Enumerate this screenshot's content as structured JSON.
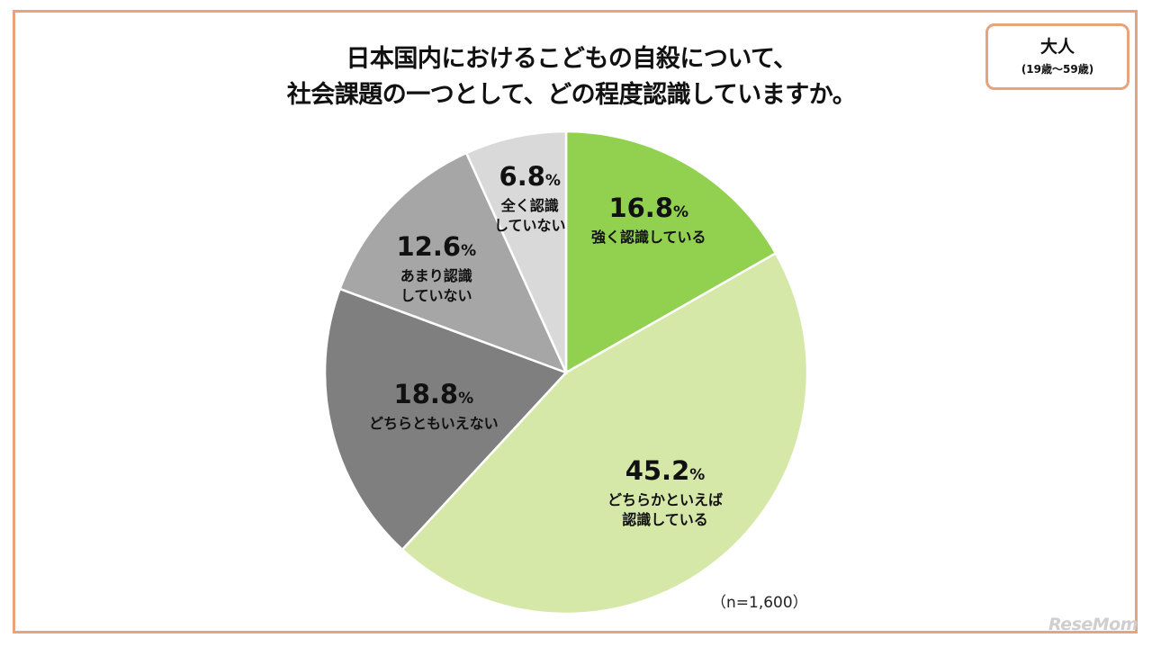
{
  "chart_data": {
    "type": "pie",
    "title_lines": [
      "日本国内におけるこどもの自殺について、",
      "社会課題の一つとして、どの程度認識していますか。"
    ],
    "slices": [
      {
        "pct": "16.8",
        "label": "強く認識している",
        "lines": [
          "強く認識している"
        ],
        "value": 16.8,
        "color": "#92d050"
      },
      {
        "pct": "45.2",
        "label": "どちらかといえば認識している",
        "lines": [
          "どちらかといえば",
          "認識している"
        ],
        "value": 45.2,
        "color": "#d6e8a8"
      },
      {
        "pct": "18.8",
        "label": "どちらともいえない",
        "lines": [
          "どちらともいえない"
        ],
        "value": 18.8,
        "color": "#7f7f7f"
      },
      {
        "pct": "12.6",
        "label": "あまり認識していない",
        "lines": [
          "あまり認識",
          "していない"
        ],
        "value": 12.6,
        "color": "#a6a6a6"
      },
      {
        "pct": "6.8",
        "label": "全く認識していない",
        "lines": [
          "全く認識",
          "していない"
        ],
        "value": 6.8,
        "color": "#d9d9d9"
      }
    ],
    "unit": "%",
    "sample_note": "（n=1,600）"
  },
  "badge": {
    "title": "大人",
    "subtitle": "(19歳～59歳)"
  },
  "watermark": "ReseMom",
  "colors": {
    "frame": "#e8a27c"
  }
}
